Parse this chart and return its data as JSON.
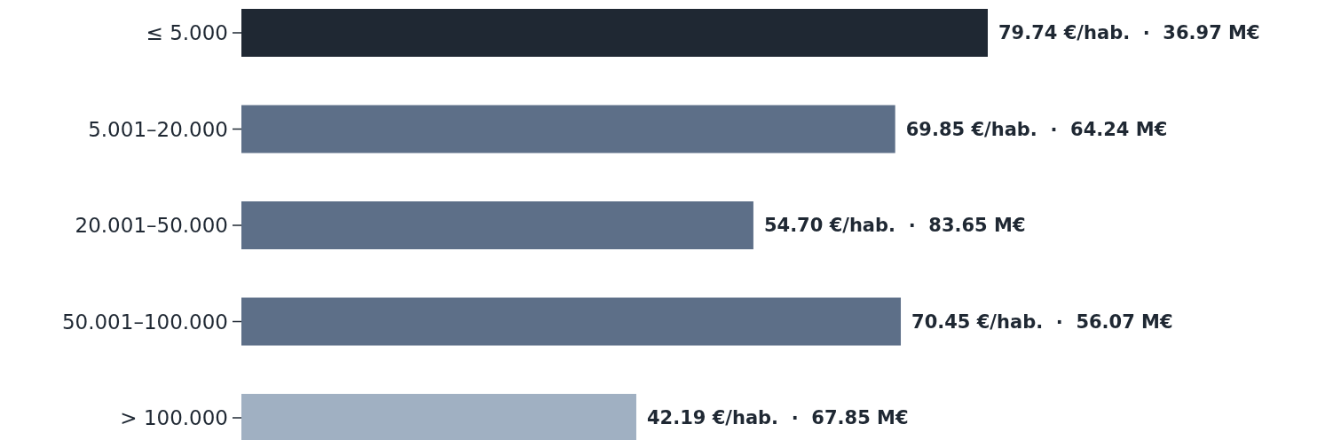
{
  "chart_data": {
    "type": "bar",
    "orientation": "horizontal",
    "categories": [
      "≤ 5.000",
      "5.001–20.000",
      "20.001–50.000",
      "50.001–100.000",
      "> 100.000"
    ],
    "values": [
      79.74,
      69.85,
      54.7,
      70.45,
      42.19
    ],
    "colors": [
      "#1f2833",
      "#5d6f88",
      "#5d6f88",
      "#5d6f88",
      "#a0b0c2"
    ],
    "value_labels": [
      "79.74 €/hab.  ·  36.97 M€",
      "69.85 €/hab.  ·  64.24 M€",
      "54.70 €/hab.  ·  83.65 M€",
      "70.45 €/hab.  ·  56.07 M€",
      "42.19 €/hab.  ·  67.85 M€"
    ]
  }
}
